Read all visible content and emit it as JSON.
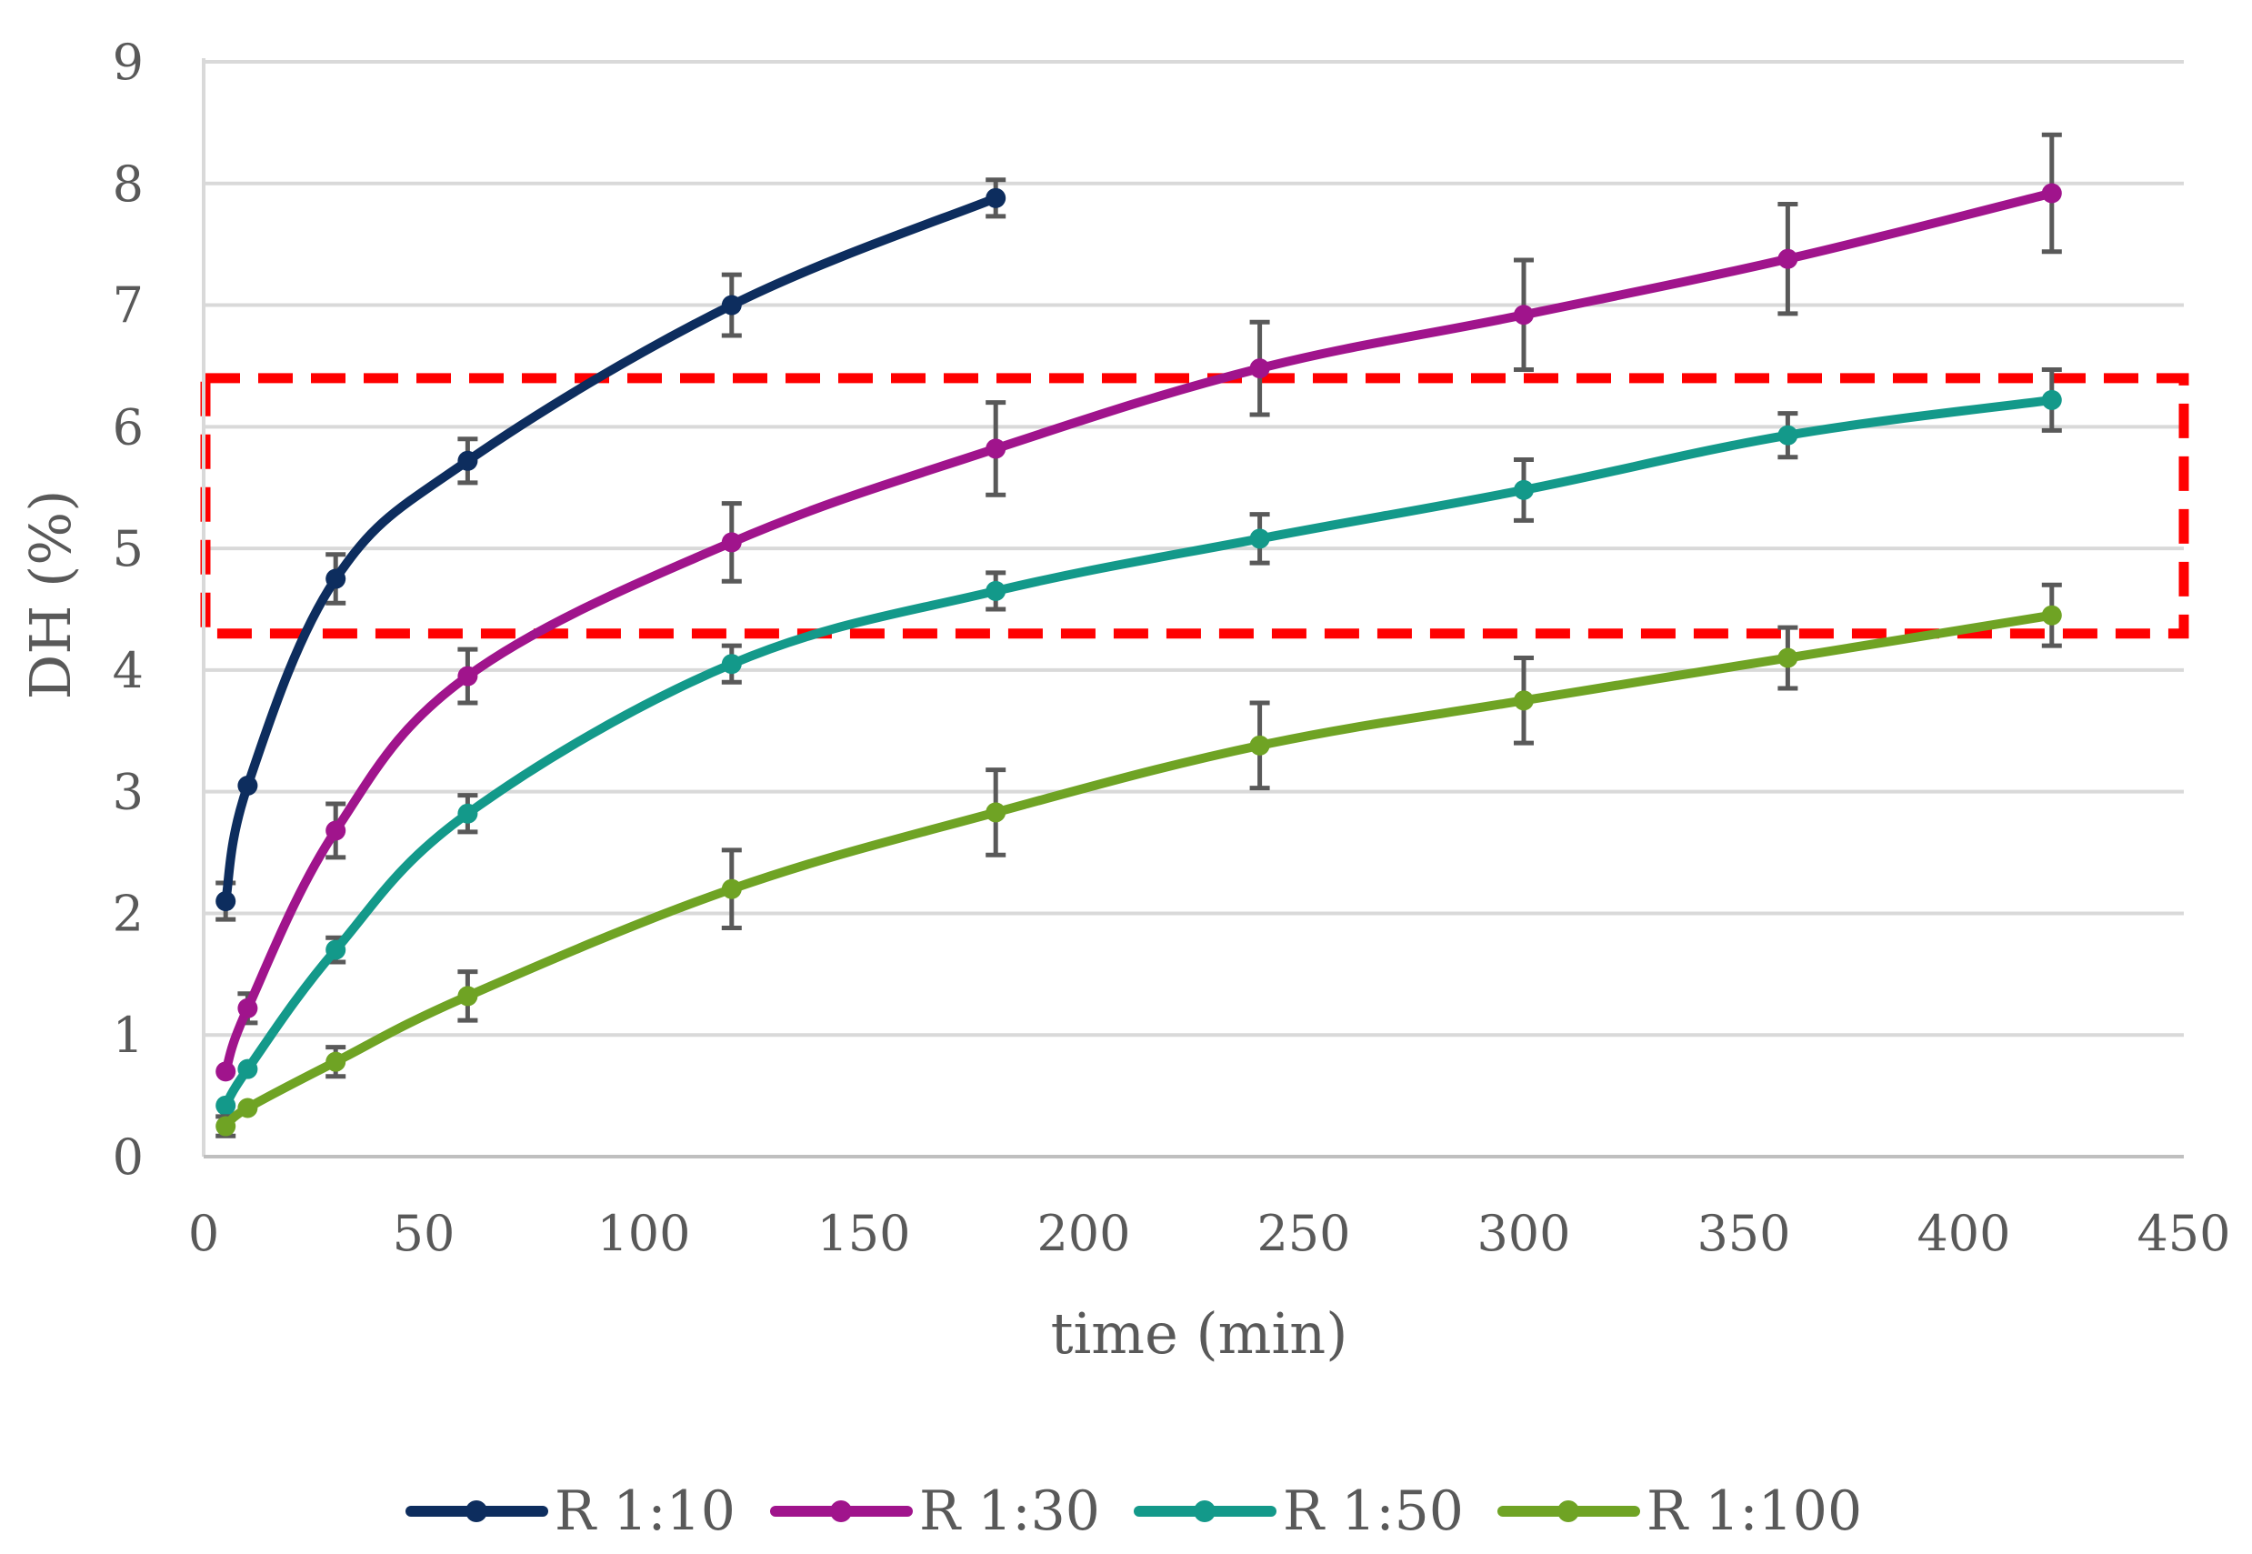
{
  "chart_data": {
    "type": "line",
    "xlabel": "time (min)",
    "ylabel": "DH (%)",
    "xlim": [
      0,
      450
    ],
    "ylim": [
      0,
      9
    ],
    "x_ticks": [
      "0",
      "50",
      "100",
      "150",
      "200",
      "250",
      "300",
      "350",
      "400",
      "450"
    ],
    "y_ticks": [
      "0",
      "1",
      "2",
      "3",
      "4",
      "5",
      "6",
      "7",
      "8",
      "9"
    ],
    "grid": "horizontal",
    "legend_position": "bottom",
    "highlight_region": {
      "y_range": [
        4.3,
        6.4
      ],
      "color": "#ff0000",
      "style": "dashed"
    },
    "series": [
      {
        "name": "R 1:10",
        "color": "#0d2d5e",
        "x": [
          5,
          10,
          30,
          60,
          120,
          180
        ],
        "y": [
          2.1,
          3.05,
          4.75,
          5.72,
          7.0,
          7.88
        ],
        "err": [
          0.15,
          0.0,
          0.2,
          0.18,
          0.25,
          0.15
        ]
      },
      {
        "name": "R 1:30",
        "color": "#a0148c",
        "x": [
          5,
          10,
          30,
          60,
          120,
          180,
          240,
          300,
          360,
          420
        ],
        "y": [
          0.7,
          1.22,
          2.68,
          3.95,
          5.05,
          5.82,
          6.48,
          6.92,
          7.38,
          7.92
        ],
        "err": [
          0.0,
          0.12,
          0.22,
          0.22,
          0.32,
          0.38,
          0.38,
          0.45,
          0.45,
          0.48
        ]
      },
      {
        "name": "R 1:50",
        "color": "#13998a",
        "x": [
          5,
          10,
          30,
          60,
          120,
          180,
          240,
          300,
          360,
          420
        ],
        "y": [
          0.42,
          0.72,
          1.7,
          2.82,
          4.05,
          4.65,
          5.08,
          5.48,
          5.93,
          6.22
        ],
        "err": [
          0.0,
          0.0,
          0.1,
          0.15,
          0.15,
          0.15,
          0.2,
          0.25,
          0.18,
          0.25
        ]
      },
      {
        "name": "R 1:100",
        "color": "#6fa324",
        "x": [
          5,
          10,
          30,
          60,
          120,
          180,
          240,
          300,
          360,
          420
        ],
        "y": [
          0.25,
          0.4,
          0.78,
          1.32,
          2.2,
          2.83,
          3.38,
          3.75,
          4.1,
          4.45
        ],
        "err": [
          0.08,
          0.0,
          0.12,
          0.2,
          0.32,
          0.35,
          0.35,
          0.35,
          0.25,
          0.25
        ]
      }
    ]
  }
}
